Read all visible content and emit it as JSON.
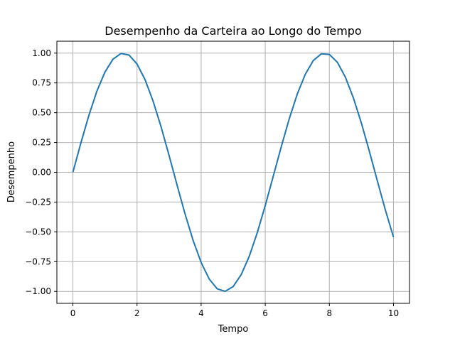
{
  "chart_data": {
    "type": "line",
    "title": "Desempenho da Carteira ao Longo do Tempo",
    "xlabel": "Tempo",
    "ylabel": "Desempenho",
    "xlim": [
      -0.5,
      10.5
    ],
    "ylim": [
      -1.1,
      1.1
    ],
    "x_ticks": [
      0,
      2,
      4,
      6,
      8,
      10
    ],
    "x_tick_labels": [
      "0",
      "2",
      "4",
      "6",
      "8",
      "10"
    ],
    "y_ticks": [
      -1.0,
      -0.75,
      -0.5,
      -0.25,
      0.0,
      0.25,
      0.5,
      0.75,
      1.0
    ],
    "y_tick_labels": [
      "−1.00",
      "−0.75",
      "−0.50",
      "−0.25",
      "0.00",
      "0.25",
      "0.50",
      "0.75",
      "1.00"
    ],
    "grid": true,
    "series": [
      {
        "color": "#1f77b4",
        "x": [
          0.0,
          0.25,
          0.5,
          0.75,
          1.0,
          1.25,
          1.5,
          1.75,
          2.0,
          2.25,
          2.5,
          2.75,
          3.0,
          3.25,
          3.5,
          3.75,
          4.0,
          4.25,
          4.5,
          4.75,
          5.0,
          5.25,
          5.5,
          5.75,
          6.0,
          6.25,
          6.5,
          6.75,
          7.0,
          7.25,
          7.5,
          7.75,
          8.0,
          8.25,
          8.5,
          8.75,
          9.0,
          9.25,
          9.5,
          9.75,
          10.0
        ],
        "y": [
          0.0,
          0.247,
          0.479,
          0.682,
          0.841,
          0.949,
          0.997,
          0.984,
          0.909,
          0.778,
          0.598,
          0.382,
          0.141,
          -0.108,
          -0.351,
          -0.572,
          -0.757,
          -0.895,
          -0.978,
          -0.999,
          -0.959,
          -0.859,
          -0.706,
          -0.508,
          -0.279,
          -0.033,
          0.215,
          0.45,
          0.657,
          0.823,
          0.938,
          0.994,
          0.989,
          0.923,
          0.798,
          0.624,
          0.412,
          0.174,
          -0.075,
          -0.319,
          -0.544
        ]
      }
    ]
  }
}
